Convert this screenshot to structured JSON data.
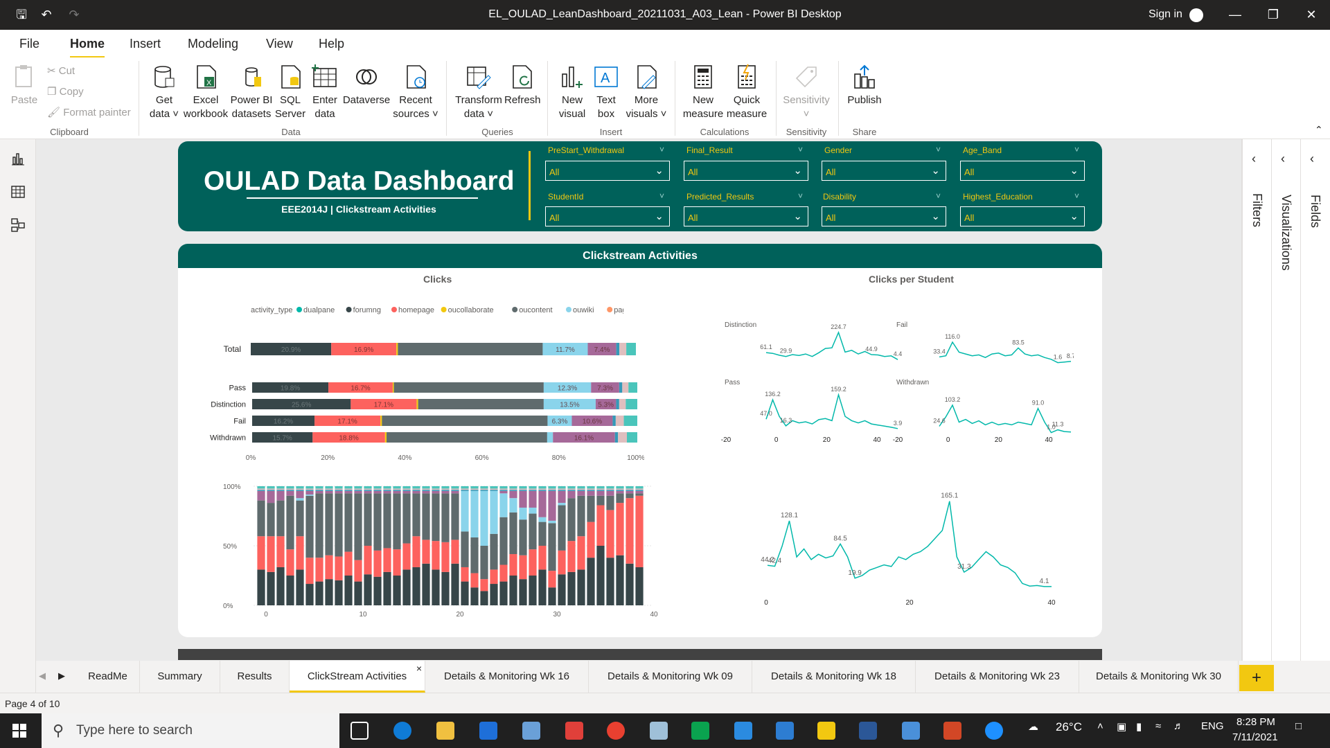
{
  "window": {
    "title": "EL_OULAD_LeanDashboard_20211031_A03_Lean - Power BI Desktop",
    "sign_in": "Sign in"
  },
  "menu": [
    "File",
    "Home",
    "Insert",
    "Modeling",
    "View",
    "Help"
  ],
  "ribbon": {
    "clipboard": {
      "paste": "Paste",
      "cut": "Cut",
      "copy": "Copy",
      "format_painter": "Format painter",
      "group": "Clipboard"
    },
    "data": {
      "get_data": [
        "Get",
        "data"
      ],
      "excel": [
        "Excel",
        "workbook"
      ],
      "pbi_datasets": [
        "Power BI",
        "datasets"
      ],
      "sql": [
        "SQL",
        "Server"
      ],
      "enter": [
        "Enter",
        "data"
      ],
      "dataverse": "Dataverse",
      "recent": [
        "Recent",
        "sources"
      ],
      "group": "Data"
    },
    "queries": {
      "transform": [
        "Transform",
        "data"
      ],
      "refresh": "Refresh",
      "group": "Queries"
    },
    "insert": {
      "new_visual": [
        "New",
        "visual"
      ],
      "text_box": [
        "Text",
        "box"
      ],
      "more_visuals": [
        "More",
        "visuals"
      ],
      "group": "Insert"
    },
    "calculations": {
      "new_measure": [
        "New",
        "measure"
      ],
      "quick_measure": [
        "Quick",
        "measure"
      ],
      "group": "Calculations"
    },
    "sensitivity": {
      "label": "Sensitivity",
      "group": "Sensitivity"
    },
    "share": {
      "publish": "Publish",
      "group": "Share"
    }
  },
  "dashboard": {
    "title": "OULAD Data Dashboard",
    "subtitle": "EEE2014J | Clickstream Activities"
  },
  "slicers": [
    {
      "label": "PreStart_Withdrawal",
      "value": "All"
    },
    {
      "label": "Final_Result",
      "value": "All"
    },
    {
      "label": "Gender",
      "value": "All"
    },
    {
      "label": "Age_Band",
      "value": "All"
    },
    {
      "label": "StudentId",
      "value": "All"
    },
    {
      "label": "Predicted_Results",
      "value": "All"
    },
    {
      "label": "Disability",
      "value": "All"
    },
    {
      "label": "Highest_Education",
      "value": "All"
    }
  ],
  "section_title": "Clickstream Activities",
  "clicks_title": "Clicks",
  "cps_title": "Clicks per Student",
  "legend": {
    "title": "activity_type",
    "items": [
      {
        "name": "dualpane",
        "color": "#01b8aa"
      },
      {
        "name": "forumng",
        "color": "#374649"
      },
      {
        "name": "homepage",
        "color": "#fd625e"
      },
      {
        "name": "oucollaborate",
        "color": "#f2c80f"
      },
      {
        "name": "oucontent",
        "color": "#5f6b6d"
      },
      {
        "name": "ouwiki",
        "color": "#8ad4eb"
      },
      {
        "name": "page",
        "color": "#fe9666"
      }
    ]
  },
  "chart_data": [
    {
      "type": "bar",
      "stacked": "100%",
      "orientation": "horizontal",
      "name": "clicks-by-result",
      "categories": [
        "Total",
        "Pass",
        "Distinction",
        "Fail",
        "Withdrawn"
      ],
      "segment_colors": [
        "#374649",
        "#fd625e",
        "#f2c80f",
        "#5f6b6d",
        "#8ad4eb",
        "#a66999",
        "#3599b8",
        "#dfbfbf",
        "#4ac5bb"
      ],
      "rows": [
        [
          20.9,
          16.9,
          0.4,
          37.6,
          11.7,
          7.4,
          0.8,
          1.8,
          2.5
        ],
        [
          19.8,
          16.7,
          0.3,
          38.9,
          12.3,
          7.3,
          0.8,
          1.6,
          2.3
        ],
        [
          25.6,
          17.1,
          0.4,
          32.6,
          13.5,
          5.3,
          0.8,
          1.7,
          3.0
        ],
        [
          16.2,
          17.1,
          0.4,
          43.0,
          6.3,
          10.6,
          0.8,
          2.1,
          3.5
        ],
        [
          15.7,
          18.8,
          0.4,
          41.7,
          1.5,
          16.1,
          0.8,
          2.3,
          2.7
        ]
      ],
      "labels": [
        [
          "20.9%",
          "16.9%",
          "",
          "",
          "11.7%",
          "7.4%",
          "",
          "",
          ""
        ],
        [
          "19.8%",
          "16.7%",
          "",
          "",
          "12.3%",
          "7.3%",
          "",
          "",
          ""
        ],
        [
          "25.6%",
          "17.1%",
          "",
          "",
          "13.5%",
          "5.3%",
          "",
          "",
          ""
        ],
        [
          "16.2%",
          "17.1%",
          "",
          "",
          "6.3%",
          "10.6%",
          "",
          "",
          ""
        ],
        [
          "15.7%",
          "18.8%",
          "",
          "",
          "",
          "16.1%",
          "",
          "",
          ""
        ]
      ],
      "xticks": [
        "0%",
        "20%",
        "40%",
        "60%",
        "80%",
        "100%"
      ]
    },
    {
      "type": "bar",
      "stacked": "100%",
      "orientation": "vertical",
      "name": "clicks-by-week",
      "x_range": [
        -1,
        39
      ],
      "xticks": [
        "0",
        "10",
        "20",
        "30",
        "40"
      ],
      "yticks": [
        "0%",
        "50%",
        "100%"
      ],
      "segment_colors": [
        "#374649",
        "#fd625e",
        "#f2c80f",
        "#5f6b6d",
        "#8ad4eb",
        "#a66999",
        "#3599b8",
        "#dfbfbf",
        "#4ac5bb"
      ],
      "weeks": [
        [
          30,
          28,
          0,
          30,
          0,
          8,
          1,
          1,
          2
        ],
        [
          28,
          30,
          0,
          28,
          0,
          10,
          1,
          1,
          2
        ],
        [
          32,
          26,
          0,
          30,
          0,
          8,
          1,
          1,
          2
        ],
        [
          25,
          22,
          0,
          45,
          0,
          4,
          1,
          1,
          2
        ],
        [
          30,
          28,
          0,
          30,
          2,
          6,
          1,
          1,
          2
        ],
        [
          18,
          22,
          0,
          52,
          1,
          3,
          1,
          1,
          2
        ],
        [
          20,
          20,
          0,
          54,
          0,
          2,
          1,
          1,
          2
        ],
        [
          22,
          20,
          0,
          52,
          0,
          2,
          1,
          1,
          2
        ],
        [
          21,
          20,
          0,
          53,
          0,
          2,
          1,
          1,
          2
        ],
        [
          25,
          20,
          0,
          49,
          0,
          2,
          1,
          1,
          2
        ],
        [
          20,
          18,
          0,
          56,
          0,
          2,
          1,
          1,
          2
        ],
        [
          26,
          24,
          0,
          44,
          0,
          2,
          1,
          1,
          2
        ],
        [
          24,
          22,
          0,
          48,
          0,
          2,
          1,
          1,
          2
        ],
        [
          28,
          20,
          0,
          46,
          0,
          2,
          1,
          1,
          2
        ],
        [
          25,
          22,
          0,
          47,
          0,
          2,
          1,
          1,
          2
        ],
        [
          30,
          22,
          0,
          42,
          0,
          2,
          1,
          1,
          2
        ],
        [
          32,
          26,
          0,
          36,
          0,
          2,
          1,
          1,
          2
        ],
        [
          35,
          20,
          0,
          39,
          0,
          2,
          1,
          1,
          2
        ],
        [
          30,
          24,
          0,
          40,
          0,
          2,
          1,
          1,
          2
        ],
        [
          28,
          25,
          0,
          41,
          0,
          2,
          1,
          1,
          2
        ],
        [
          35,
          20,
          0,
          39,
          0,
          2,
          1,
          1,
          2
        ],
        [
          20,
          12,
          0,
          30,
          34,
          0,
          1,
          1,
          2
        ],
        [
          15,
          12,
          0,
          30,
          39,
          0,
          1,
          1,
          2
        ],
        [
          12,
          10,
          0,
          28,
          46,
          0,
          1,
          1,
          2
        ],
        [
          18,
          12,
          0,
          30,
          36,
          0,
          1,
          1,
          2
        ],
        [
          20,
          14,
          0,
          40,
          20,
          2,
          1,
          1,
          2
        ],
        [
          25,
          18,
          0,
          35,
          12,
          6,
          1,
          1,
          2
        ],
        [
          22,
          20,
          0,
          30,
          10,
          14,
          1,
          1,
          2
        ],
        [
          25,
          22,
          0,
          30,
          5,
          14,
          1,
          1,
          2
        ],
        [
          30,
          20,
          0,
          20,
          4,
          22,
          1,
          1,
          2
        ],
        [
          15,
          14,
          0,
          40,
          2,
          25,
          1,
          1,
          2
        ],
        [
          26,
          20,
          0,
          38,
          2,
          10,
          1,
          1,
          2
        ],
        [
          28,
          26,
          0,
          36,
          0,
          6,
          1,
          1,
          2
        ],
        [
          30,
          28,
          0,
          34,
          0,
          4,
          1,
          1,
          2
        ],
        [
          40,
          30,
          0,
          22,
          0,
          4,
          1,
          1,
          2
        ],
        [
          50,
          34,
          0,
          8,
          0,
          4,
          1,
          1,
          2
        ],
        [
          40,
          40,
          0,
          12,
          0,
          4,
          1,
          1,
          2
        ],
        [
          42,
          44,
          0,
          8,
          0,
          2,
          1,
          1,
          2
        ],
        [
          35,
          55,
          0,
          4,
          0,
          2,
          1,
          1,
          2
        ],
        [
          32,
          60,
          0,
          2,
          0,
          2,
          1,
          1,
          2
        ]
      ]
    },
    {
      "type": "line",
      "name": "cps-distinction",
      "panel": "Distinction",
      "color": "#01b8aa",
      "x": [
        -1,
        1,
        3,
        5,
        7,
        9,
        11,
        13,
        15,
        17,
        19,
        21,
        23,
        25,
        27,
        29,
        31,
        33,
        35,
        37,
        39
      ],
      "y": [
        61.1,
        55,
        40,
        29.9,
        45,
        38,
        50,
        30,
        60,
        95,
        100,
        224.7,
        65,
        80,
        50,
        70,
        44.9,
        42,
        30,
        35,
        4.4
      ],
      "point_labels": [
        {
          "i": 0,
          "t": "61.1"
        },
        {
          "i": 3,
          "t": "29.9"
        },
        {
          "i": 11,
          "t": "224.7"
        },
        {
          "i": 16,
          "t": "44.9"
        },
        {
          "i": 20,
          "t": "4.4"
        }
      ]
    },
    {
      "type": "line",
      "name": "cps-fail",
      "panel": "Fail",
      "color": "#01b8aa",
      "x": [
        -1,
        1,
        3,
        5,
        7,
        9,
        11,
        13,
        15,
        17,
        19,
        21,
        23,
        25,
        27,
        29,
        31,
        33,
        35,
        37,
        39
      ],
      "y": [
        33.4,
        40,
        116,
        60,
        50,
        40,
        45,
        30,
        50,
        55,
        40,
        45,
        83.5,
        50,
        40,
        45,
        30,
        20,
        1.6,
        5,
        8.7
      ],
      "point_labels": [
        {
          "i": 0,
          "t": "33.4"
        },
        {
          "i": 2,
          "t": "116.0"
        },
        {
          "i": 12,
          "t": "83.5"
        },
        {
          "i": 18,
          "t": "1.6"
        },
        {
          "i": 20,
          "t": "8.7"
        }
      ]
    },
    {
      "type": "line",
      "name": "cps-pass",
      "panel": "Pass",
      "color": "#01b8aa",
      "x": [
        -1,
        1,
        3,
        5,
        7,
        9,
        11,
        13,
        15,
        17,
        19,
        21,
        23,
        25,
        27,
        29,
        31,
        33,
        35,
        37,
        39
      ],
      "y": [
        47,
        136.2,
        60,
        16.3,
        40,
        30,
        35,
        25,
        45,
        50,
        40,
        159.2,
        60,
        40,
        30,
        40,
        25,
        20,
        15,
        10,
        3.9
      ],
      "point_labels": [
        {
          "i": 0,
          "t": "47.0"
        },
        {
          "i": 1,
          "t": "136.2"
        },
        {
          "i": 3,
          "t": "16.3"
        },
        {
          "i": 11,
          "t": "159.2"
        },
        {
          "i": 20,
          "t": "3.9"
        }
      ]
    },
    {
      "type": "line",
      "name": "cps-withdrawn",
      "panel": "Withdrawn",
      "color": "#01b8aa",
      "x": [
        -1,
        1,
        3,
        5,
        7,
        9,
        11,
        13,
        15,
        17,
        19,
        21,
        23,
        25,
        27,
        29,
        31,
        33,
        35,
        37,
        39
      ],
      "y": [
        24.6,
        60,
        103.2,
        40,
        50,
        35,
        45,
        30,
        40,
        30,
        35,
        30,
        40,
        35,
        30,
        91,
        40,
        1,
        11.3,
        5,
        3
      ],
      "point_labels": [
        {
          "i": 0,
          "t": "24.6"
        },
        {
          "i": 2,
          "t": "103.2"
        },
        {
          "i": 15,
          "t": "91.0"
        },
        {
          "i": 17,
          "t": "1.0"
        },
        {
          "i": 18,
          "t": "11.3"
        }
      ]
    },
    {
      "type": "line",
      "name": "cps-overall",
      "color": "#01b8aa",
      "x": [
        0,
        1,
        2,
        3,
        4,
        5,
        6,
        7,
        8,
        9,
        10,
        11,
        12,
        13,
        14,
        15,
        16,
        17,
        18,
        19,
        20,
        21,
        22,
        23,
        24,
        25,
        26,
        27,
        28,
        29,
        30,
        31,
        32,
        33,
        34,
        35,
        36,
        37,
        38,
        39
      ],
      "y": [
        44.2,
        42.4,
        80,
        128.1,
        60,
        75,
        55,
        65,
        58,
        62,
        84.5,
        60,
        19.9,
        25,
        35,
        40,
        45,
        42,
        60,
        55,
        65,
        70,
        80,
        95,
        110,
        165.1,
        60,
        31.3,
        40,
        55,
        70,
        60,
        45,
        40,
        30,
        10,
        5,
        6,
        4.1,
        4.1
      ],
      "point_labels": [
        {
          "i": 0,
          "t": "44.2"
        },
        {
          "i": 1,
          "t": "42.4"
        },
        {
          "i": 3,
          "t": "128.1"
        },
        {
          "i": 10,
          "t": "84.5"
        },
        {
          "i": 12,
          "t": "19.9"
        },
        {
          "i": 25,
          "t": "165.1"
        },
        {
          "i": 27,
          "t": "31.3"
        },
        {
          "i": 38,
          "t": "4.1"
        }
      ]
    }
  ],
  "small_axis": {
    "ticks": [
      "-20",
      "0",
      "20",
      "40"
    ]
  },
  "big_axis": {
    "ticks": [
      "0",
      "20",
      "40"
    ]
  },
  "right_panes": [
    "Filters",
    "Visualizations",
    "Fields"
  ],
  "tabs": [
    "ReadMe",
    "Summary",
    "Results",
    "ClickStream Activities",
    "Details & Monitoring Wk 16",
    "Details & Monitoring Wk 09",
    "Details & Monitoring Wk 18",
    "Details & Monitoring Wk 23",
    "Details & Monitoring Wk 30"
  ],
  "active_tab": "ClickStream Activities",
  "status": "Page 4 of 10",
  "taskbar": {
    "search": "Type here to search",
    "weather": "26°C",
    "lang": "ENG",
    "time": "8:28 PM",
    "date": "7/11/2021"
  }
}
